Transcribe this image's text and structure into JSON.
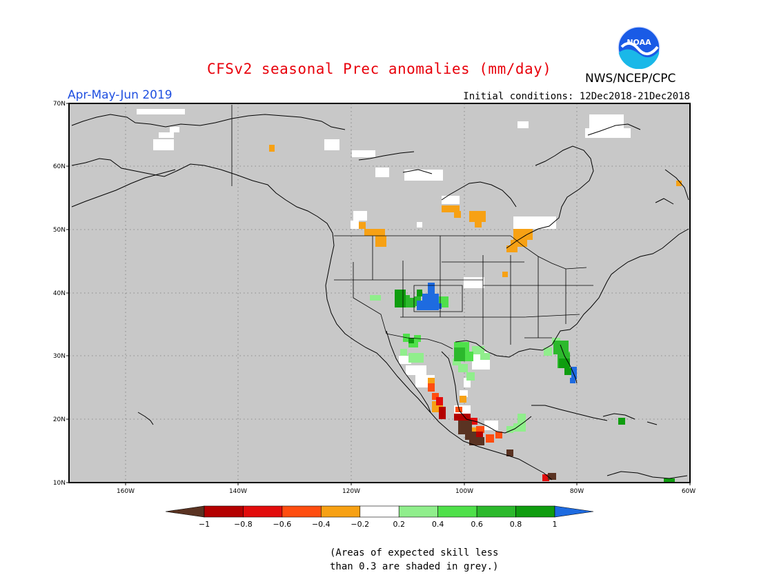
{
  "title": "CFSv2 seasonal Prec anomalies (mm/day)",
  "organization": "NWS/NCEP/CPC",
  "logo_text": "NOAA",
  "season": "Apr-May-Jun 2019",
  "initial_conditions": "Initial conditions: 12Dec2018-21Dec2018",
  "map": {
    "lon_range": [
      -170,
      -60
    ],
    "lat_range": [
      10,
      70
    ],
    "lon_ticks": [
      "160W",
      "140W",
      "120W",
      "100W",
      "80W",
      "60W"
    ],
    "lat_ticks": [
      "70N",
      "60N",
      "50N",
      "40N",
      "30N",
      "20N",
      "10N"
    ],
    "gridlines": true
  },
  "colorbar": {
    "labels": [
      "−1",
      "−0.8",
      "−0.6",
      "−0.4",
      "−0.2",
      "0.2",
      "0.4",
      "0.6",
      "0.8",
      "1"
    ],
    "colors": [
      "#5a3322",
      "#b40000",
      "#e20c0c",
      "#ff4d10",
      "#f7a114",
      "#ffffff",
      "#90ee8c",
      "#4fe04a",
      "#2cb92c",
      "#0f9d0f",
      "#1e6be0"
    ]
  },
  "note_lines": [
    "(Areas of expected skill less",
    "than 0.3 are shaded in grey.)"
  ],
  "colors": {
    "grey": "#c8c8c8",
    "title": "#e8000b",
    "season": "#1f4fe0"
  }
}
